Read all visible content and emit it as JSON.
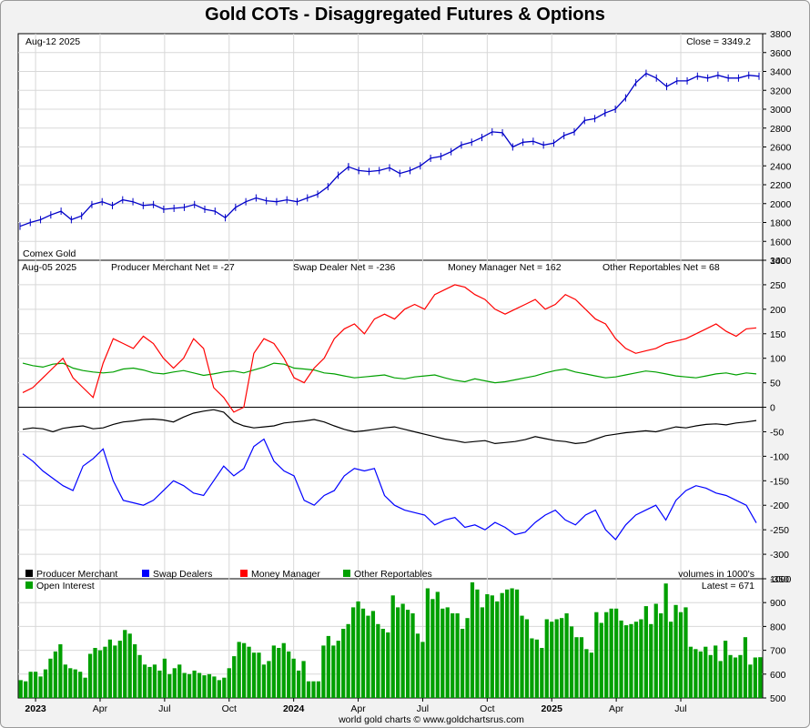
{
  "title": "Gold COTs - Disaggregated Futures & Options",
  "footer": "world gold charts © www.goldchartsrus.com",
  "colors": {
    "price": "#0000c8",
    "producer": "#000000",
    "swap": "#0000ff",
    "money": "#ff0000",
    "other": "#00a000",
    "oi": "#00a000",
    "grid": "#d8d8d8"
  },
  "chart_data": [
    {
      "type": "line",
      "name_label": "Comex Gold",
      "date_label": "Aug-12  2025",
      "close_label": "Close = 3349.2",
      "ylim": [
        1400,
        3800
      ],
      "yticks": [
        1400,
        1600,
        1800,
        2000,
        2200,
        2400,
        2600,
        2800,
        3000,
        3200,
        3400,
        3600,
        3800
      ],
      "x": [
        0,
        20,
        40,
        60,
        80,
        100,
        120,
        140,
        160,
        180,
        200,
        220,
        240,
        260,
        280,
        300,
        320,
        340,
        360,
        380,
        400,
        420,
        440,
        460,
        480,
        500,
        520,
        540,
        560,
        580,
        600,
        620,
        640
      ],
      "values": [
        1760,
        1800,
        1830,
        1880,
        1920,
        1830,
        1870,
        1990,
        2020,
        1980,
        2040,
        2020,
        1980,
        1990,
        1940,
        1950,
        1960,
        1990,
        1940,
        1920,
        1850,
        1960,
        2020,
        2060,
        2030,
        2020,
        2040,
        2020,
        2060,
        2100,
        2180,
        2300,
        2390
      ],
      "x2": [
        660,
        680,
        700,
        720,
        740,
        760,
        780,
        800,
        820,
        840,
        860,
        880,
        900,
        920,
        940,
        960,
        980,
        1000,
        1020,
        1040,
        1060,
        1080,
        1100,
        1120,
        1140
      ],
      "values2": [
        2350,
        2340,
        2350,
        2380,
        2320,
        2350,
        2400,
        2480,
        2500,
        2550,
        2620,
        2650,
        2700,
        2760,
        2750,
        2600,
        2650,
        2660,
        2620,
        2640,
        2720,
        2760,
        2880,
        2900,
        2960
      ],
      "x3": [
        1160,
        1180,
        1200,
        1220,
        1240,
        1260,
        1280,
        1300,
        1320,
        1340,
        1360,
        1380,
        1400,
        1420,
        1440
      ],
      "values3": [
        3000,
        3120,
        3280,
        3380,
        3330,
        3240,
        3300,
        3300,
        3350,
        3330,
        3360,
        3330,
        3330,
        3360,
        3349
      ]
    },
    {
      "type": "line",
      "date_label": "Aug-05  2025",
      "ylim": [
        -350,
        300
      ],
      "yticks": [
        -350,
        -300,
        -250,
        -200,
        -150,
        -100,
        -50,
        0,
        50,
        100,
        150,
        200,
        250,
        300
      ],
      "series": [
        {
          "name": "Producer Merchant",
          "net_label": "Producer Merchant Net = -27",
          "values": [
            -45,
            -42,
            -44,
            -50,
            -43,
            -40,
            -38,
            -44,
            -42,
            -35,
            -30,
            -28,
            -25,
            -24,
            -26,
            -30,
            -20,
            -12,
            -8,
            -5,
            -10,
            -30,
            -38,
            -42,
            -40,
            -38,
            -32,
            -30,
            -28,
            -25,
            -30,
            -38,
            -45,
            -50,
            -48,
            -45,
            -42,
            -40,
            -45,
            -50,
            -55,
            -60,
            -65,
            -68,
            -72,
            -70,
            -68,
            -74,
            -72,
            -70,
            -66,
            -60,
            -64,
            -68,
            -70,
            -74,
            -72,
            -65,
            -58,
            -55,
            -52,
            -50,
            -48,
            -50,
            -45,
            -40,
            -42,
            -38,
            -35,
            -34,
            -36,
            -32,
            -30,
            -27
          ]
        },
        {
          "name": "Swap Dealers",
          "net_label": "Swap Dealer Net = -236",
          "values": [
            -95,
            -110,
            -130,
            -145,
            -160,
            -170,
            -120,
            -105,
            -85,
            -150,
            -190,
            -195,
            -200,
            -190,
            -170,
            -150,
            -160,
            -175,
            -180,
            -150,
            -120,
            -140,
            -125,
            -80,
            -65,
            -110,
            -130,
            -140,
            -190,
            -200,
            -180,
            -170,
            -140,
            -125,
            -130,
            -125,
            -180,
            -200,
            -210,
            -215,
            -220,
            -240,
            -230,
            -225,
            -245,
            -240,
            -250,
            -235,
            -245,
            -260,
            -255,
            -235,
            -220,
            -210,
            -230,
            -240,
            -220,
            -210,
            -250,
            -270,
            -240,
            -220,
            -210,
            -200,
            -230,
            -190,
            -170,
            -160,
            -165,
            -175,
            -180,
            -190,
            -200,
            -236
          ]
        },
        {
          "name": "Money Manager",
          "net_label": "Money Manager Net = 162",
          "values": [
            30,
            40,
            60,
            80,
            100,
            60,
            40,
            20,
            90,
            140,
            130,
            120,
            145,
            130,
            100,
            80,
            100,
            140,
            120,
            40,
            20,
            -10,
            0,
            110,
            140,
            130,
            100,
            60,
            50,
            80,
            100,
            140,
            160,
            170,
            150,
            180,
            190,
            180,
            200,
            210,
            200,
            230,
            240,
            250,
            245,
            230,
            220,
            200,
            190,
            200,
            210,
            220,
            200,
            210,
            230,
            220,
            200,
            180,
            170,
            140,
            120,
            110,
            115,
            120,
            130,
            135,
            140,
            150,
            160,
            170,
            155,
            145,
            160,
            162
          ]
        },
        {
          "name": "Other Reportables",
          "net_label": "Other Reportables Net = 68",
          "values": [
            90,
            85,
            82,
            88,
            90,
            80,
            75,
            72,
            70,
            72,
            78,
            80,
            76,
            70,
            68,
            72,
            75,
            70,
            65,
            68,
            72,
            74,
            70,
            76,
            82,
            90,
            88,
            80,
            78,
            76,
            70,
            68,
            64,
            60,
            62,
            64,
            66,
            60,
            58,
            62,
            64,
            66,
            60,
            55,
            52,
            58,
            54,
            50,
            52,
            56,
            60,
            64,
            70,
            75,
            78,
            72,
            68,
            64,
            60,
            62,
            66,
            70,
            74,
            72,
            68,
            64,
            62,
            60,
            64,
            68,
            70,
            66,
            70,
            68
          ]
        }
      ]
    },
    {
      "type": "bar",
      "name_label": "Open Interest",
      "legend_note": "volumes in 1000's",
      "latest_label": "Latest = 671",
      "ylim": [
        500,
        1000
      ],
      "yticks": [
        500,
        600,
        700,
        800,
        900,
        1000
      ],
      "values": [
        575,
        570,
        610,
        610,
        590,
        620,
        665,
        695,
        725,
        640,
        625,
        620,
        610,
        585,
        685,
        710,
        700,
        715,
        745,
        720,
        740,
        785,
        770,
        725,
        680,
        640,
        630,
        640,
        615,
        665,
        600,
        625,
        640,
        605,
        600,
        615,
        605,
        595,
        600,
        590,
        575,
        585,
        625,
        675,
        735,
        730,
        715,
        690,
        690,
        640,
        655,
        720,
        710,
        730,
        695,
        665,
        615,
        655,
        570,
        570,
        570,
        720,
        760,
        720,
        740,
        790,
        810,
        880,
        905,
        875,
        845,
        865,
        810,
        790,
        775,
        930,
        880,
        895,
        870,
        855,
        770,
        735,
        960,
        915,
        945,
        875,
        880,
        855,
        855,
        790,
        835,
        985,
        955,
        880,
        935,
        930,
        905,
        940,
        955,
        960,
        955,
        845,
        830,
        750,
        745,
        710,
        830,
        820,
        830,
        835,
        855,
        800,
        755,
        755,
        705,
        690,
        860,
        815,
        860,
        875,
        875,
        825,
        805,
        810,
        820,
        830,
        885,
        810,
        895,
        855,
        980,
        820,
        890,
        860,
        880,
        715,
        705,
        695,
        715,
        680,
        720,
        655,
        740,
        680,
        670,
        680,
        755,
        640,
        670,
        671
      ],
      "xlabels": [
        {
          "label": "2023",
          "bold": true,
          "i": 3
        },
        {
          "label": "Apr",
          "bold": false,
          "i": 16
        },
        {
          "label": "Jul",
          "bold": false,
          "i": 29
        },
        {
          "label": "Oct",
          "bold": false,
          "i": 42
        },
        {
          "label": "2024",
          "bold": true,
          "i": 55
        },
        {
          "label": "Apr",
          "bold": false,
          "i": 68
        },
        {
          "label": "Jul",
          "bold": false,
          "i": 81
        },
        {
          "label": "Oct",
          "bold": false,
          "i": 94
        },
        {
          "label": "2025",
          "bold": true,
          "i": 107
        },
        {
          "label": "Apr",
          "bold": false,
          "i": 120
        },
        {
          "label": "Jul",
          "bold": false,
          "i": 133
        }
      ]
    }
  ]
}
